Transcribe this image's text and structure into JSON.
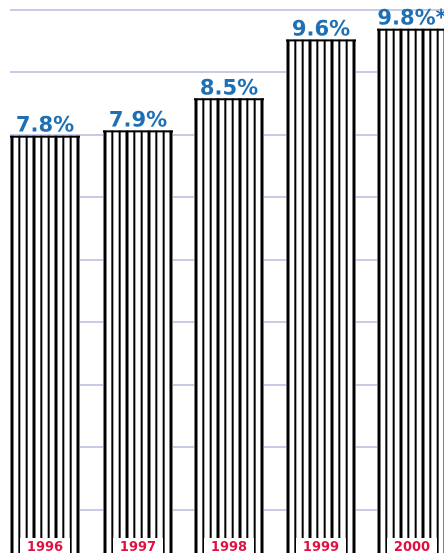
{
  "chart_data": {
    "type": "bar",
    "categories": [
      "1996",
      "1997",
      "1998",
      "1999",
      "2000"
    ],
    "values": [
      7.8,
      7.9,
      8.5,
      9.6,
      9.8
    ],
    "value_labels": [
      "7.8%",
      "7.9%",
      "8.5%",
      "9.6%",
      "9.8%*"
    ],
    "title": "",
    "xlabel": "",
    "ylabel": "",
    "ylim": [
      0,
      10
    ],
    "grid": true,
    "colors": {
      "bar_stripe": "#000000",
      "gridline": "#c7cbe6",
      "value_label": "#1e6fb3",
      "year_label": "#e0103f"
    }
  }
}
